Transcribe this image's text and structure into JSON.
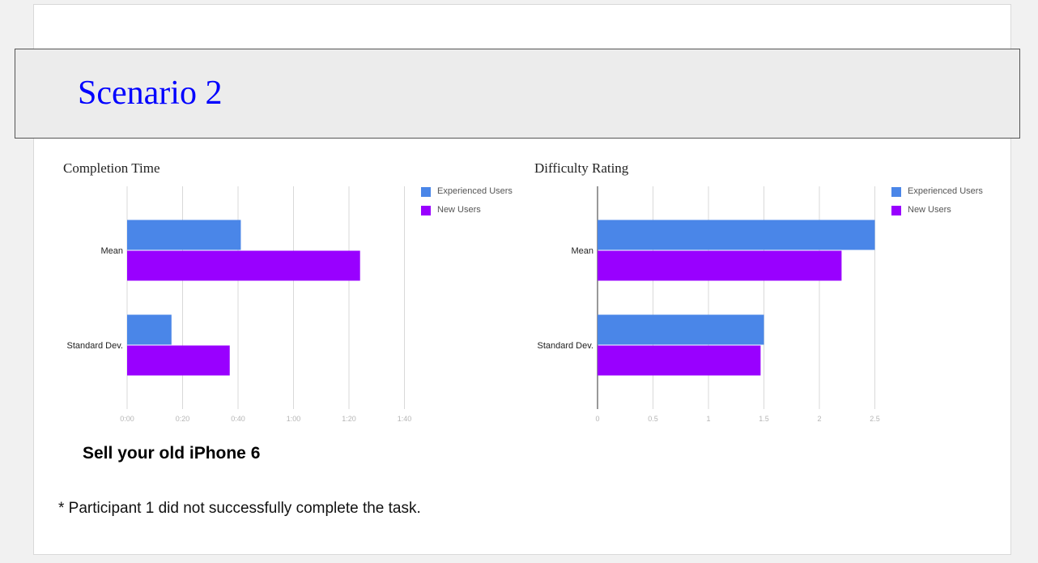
{
  "slide": {
    "title": "Scenario 2",
    "task": "Sell your old iPhone 6",
    "footnote": "* Participant 1 did not successfully complete the task."
  },
  "colors": {
    "experienced": "#4a86e8",
    "new": "#9900ff",
    "grid": "#d9d9d9",
    "title": "#0000ff"
  },
  "chart_data": [
    {
      "type": "bar",
      "orientation": "horizontal",
      "title": "Completion Time",
      "categories": [
        "Mean",
        "Standard Dev."
      ],
      "series": [
        {
          "name": "Experienced Users",
          "values": [
            41,
            16
          ],
          "color": "#4a86e8"
        },
        {
          "name": "New Users",
          "values": [
            84,
            37
          ],
          "color": "#9900ff"
        }
      ],
      "value_unit": "seconds",
      "xlim": [
        0,
        100
      ],
      "xticks": [
        0,
        20,
        40,
        60,
        80,
        100
      ],
      "xtick_labels": [
        "0:00",
        "0:20",
        "0:40",
        "1:00",
        "1:20",
        "1:40"
      ],
      "grid": true,
      "legend": "top-right"
    },
    {
      "type": "bar",
      "orientation": "horizontal",
      "title": "Difficulty Rating",
      "categories": [
        "Mean",
        "Standard Dev."
      ],
      "series": [
        {
          "name": "Experienced Users",
          "values": [
            2.5,
            1.5
          ],
          "color": "#4a86e8"
        },
        {
          "name": "New Users",
          "values": [
            2.2,
            1.47
          ],
          "color": "#9900ff"
        }
      ],
      "xlim": [
        0,
        2.5
      ],
      "xticks": [
        0,
        0.5,
        1,
        1.5,
        2,
        2.5
      ],
      "xtick_labels": [
        "0",
        "0.5",
        "1",
        "1.5",
        "2",
        "2.5"
      ],
      "grid": true,
      "legend": "top-right"
    }
  ]
}
